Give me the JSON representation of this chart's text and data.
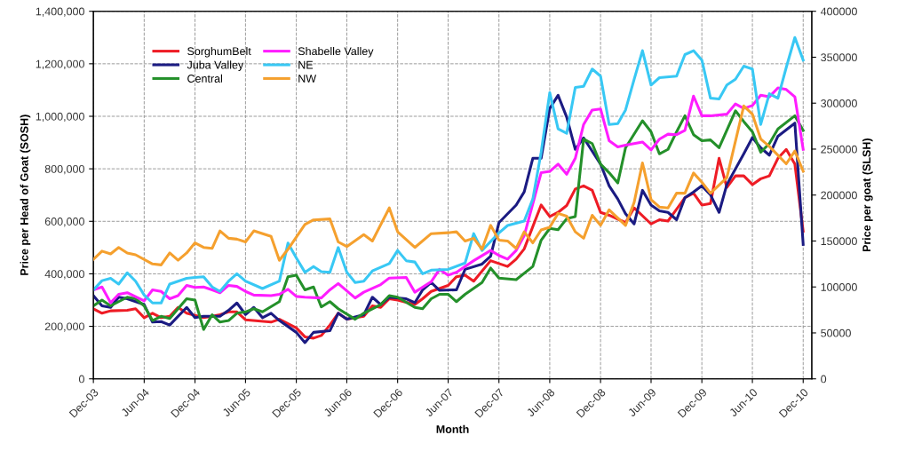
{
  "chart_data": {
    "type": "line",
    "xlabel": "Month",
    "ylabel": "Price per Head of Goat (SOSH)",
    "y2label": "Price per goat (SLSH)",
    "xlim": [
      "2003-12",
      "2011-01"
    ],
    "xticks": [
      {
        "value": "2003-12",
        "label": "Dec-03"
      },
      {
        "value": "2004-06",
        "label": "Jun-04"
      },
      {
        "value": "2004-12",
        "label": "Dec-04"
      },
      {
        "value": "2005-06",
        "label": "Jun-05"
      },
      {
        "value": "2005-12",
        "label": "Dec-05"
      },
      {
        "value": "2006-06",
        "label": "Jun-06"
      },
      {
        "value": "2006-12",
        "label": "Dec-06"
      },
      {
        "value": "2007-06",
        "label": "Jun-07"
      },
      {
        "value": "2007-12",
        "label": "Dec-07"
      },
      {
        "value": "2008-06",
        "label": "Jun-08"
      },
      {
        "value": "2008-12",
        "label": "Dec-08"
      },
      {
        "value": "2009-06",
        "label": "Jun-09"
      },
      {
        "value": "2009-12",
        "label": "Dec-09"
      },
      {
        "value": "2010-06",
        "label": "Jun-10"
      },
      {
        "value": "2010-12",
        "label": "Dec-10"
      }
    ],
    "ylim": [
      0,
      1400000
    ],
    "yticks": [
      {
        "value": 0,
        "label": "0"
      },
      {
        "value": 200000,
        "label": "200,000"
      },
      {
        "value": 400000,
        "label": "400,000"
      },
      {
        "value": 600000,
        "label": "600,000"
      },
      {
        "value": 800000,
        "label": "800,000"
      },
      {
        "value": 1000000,
        "label": "1,000,000"
      },
      {
        "value": 1200000,
        "label": "1,200,000"
      },
      {
        "value": 1400000,
        "label": "1,400,000"
      }
    ],
    "y2lim": [
      0,
      400000
    ],
    "y2ticks": [
      0,
      50000,
      100000,
      150000,
      200000,
      250000,
      300000,
      350000,
      400000
    ],
    "grid": true,
    "legend": "top left",
    "line_style": "solid",
    "marker": "none",
    "series": [
      {
        "name": "SorghumBelt",
        "color": "#ee1c25",
        "x": [
          "2003-12",
          "2004-01",
          "2004-02",
          "2004-04",
          "2004-05",
          "2004-06",
          "2004-07",
          "2004-08",
          "2004-09",
          "2004-10",
          "2004-11",
          "2005-01",
          "2005-02",
          "2005-03",
          "2005-04",
          "2005-05",
          "2005-06",
          "2005-09",
          "2005-10",
          "2005-12",
          "2006-01",
          "2006-02",
          "2006-03",
          "2006-04",
          "2006-05",
          "2006-06",
          "2006-08",
          "2006-09",
          "2006-10",
          "2006-11",
          "2006-12",
          "2007-02",
          "2007-03",
          "2007-04",
          "2007-06",
          "2007-07",
          "2007-08",
          "2007-09",
          "2007-11",
          "2007-12",
          "2008-01",
          "2008-02",
          "2008-03",
          "2008-05",
          "2008-06",
          "2008-07",
          "2008-08",
          "2008-09",
          "2008-10",
          "2008-11",
          "2008-12",
          "2009-01",
          "2009-03",
          "2009-04",
          "2009-06",
          "2009-07",
          "2009-08",
          "2009-10",
          "2009-11",
          "2009-12",
          "2010-01",
          "2010-02",
          "2010-03",
          "2010-04",
          "2010-05",
          "2010-06",
          "2010-07",
          "2010-08",
          "2010-09",
          "2010-10",
          "2010-11",
          "2010-12"
        ],
        "values": [
          267000,
          250000,
          259000,
          261000,
          267000,
          233000,
          250000,
          233000,
          238000,
          272000,
          250000,
          233000,
          238000,
          244000,
          255000,
          255000,
          225000,
          216000,
          227000,
          194000,
          160000,
          155000,
          165000,
          205000,
          250000,
          227000,
          238000,
          278000,
          272000,
          305000,
          300000,
          283000,
          305000,
          333000,
          356000,
          389000,
          395000,
          372000,
          450000,
          439000,
          428000,
          456000,
          495000,
          662000,
          618000,
          634000,
          660000,
          723000,
          735000,
          718000,
          634000,
          623000,
          595000,
          651000,
          590000,
          606000,
          601000,
          690000,
          707000,
          662000,
          668000,
          840000,
          729000,
          773000,
          773000,
          740000,
          762000,
          773000,
          840000,
          874000,
          818000,
          562000
        ]
      },
      {
        "name": "Juba Valley",
        "color": "#1b1b82",
        "x": [
          "2003-12",
          "2004-01",
          "2004-02",
          "2004-03",
          "2004-04",
          "2004-06",
          "2004-07",
          "2004-08",
          "2004-09",
          "2004-11",
          "2004-12",
          "2005-01",
          "2005-03",
          "2005-04",
          "2005-05",
          "2005-06",
          "2005-07",
          "2005-08",
          "2005-09",
          "2005-10",
          "2005-12",
          "2006-01",
          "2006-02",
          "2006-04",
          "2006-05",
          "2006-06",
          "2006-08",
          "2006-09",
          "2006-10",
          "2006-11",
          "2007-01",
          "2007-02",
          "2007-03",
          "2007-04",
          "2007-05",
          "2007-07",
          "2007-08",
          "2007-10",
          "2007-11",
          "2007-12",
          "2008-02",
          "2008-03",
          "2008-04",
          "2008-05",
          "2008-06",
          "2008-07",
          "2008-08",
          "2008-09",
          "2008-10",
          "2008-12",
          "2009-01",
          "2009-02",
          "2009-03",
          "2009-04",
          "2009-05",
          "2009-06",
          "2009-07",
          "2009-08",
          "2009-09",
          "2009-10",
          "2009-11",
          "2009-12",
          "2010-01",
          "2010-02",
          "2010-03",
          "2010-05",
          "2010-06",
          "2010-07",
          "2010-08",
          "2010-09",
          "2010-11",
          "2010-12"
        ],
        "values": [
          317000,
          278000,
          272000,
          311000,
          305000,
          283000,
          216000,
          218000,
          205000,
          272000,
          233000,
          238000,
          238000,
          261000,
          289000,
          245000,
          272000,
          233000,
          250000,
          222000,
          177000,
          138000,
          177000,
          183000,
          250000,
          227000,
          244000,
          311000,
          283000,
          311000,
          305000,
          290000,
          339000,
          367000,
          337000,
          339000,
          417000,
          437000,
          467000,
          595000,
          662000,
          712000,
          840000,
          840000,
          1030000,
          1080000,
          997000,
          874000,
          918000,
          818000,
          735000,
          685000,
          629000,
          590000,
          718000,
          662000,
          640000,
          634000,
          606000,
          690000,
          712000,
          735000,
          701000,
          634000,
          740000,
          857000,
          919000,
          880000,
          852000,
          924000,
          974000,
          512000
        ]
      },
      {
        "name": "Central",
        "color": "#24902a",
        "x": [
          "2003-12",
          "2004-01",
          "2004-02",
          "2004-04",
          "2004-05",
          "2004-06",
          "2004-07",
          "2004-08",
          "2004-09",
          "2004-10",
          "2004-11",
          "2004-12",
          "2005-01",
          "2005-02",
          "2005-03",
          "2005-04",
          "2005-05",
          "2005-06",
          "2005-07",
          "2005-08",
          "2005-10",
          "2005-11",
          "2005-12",
          "2006-01",
          "2006-02",
          "2006-03",
          "2006-04",
          "2006-05",
          "2006-07",
          "2006-08",
          "2006-10",
          "2006-11",
          "2006-12",
          "2007-02",
          "2007-03",
          "2007-04",
          "2007-05",
          "2007-06",
          "2007-07",
          "2007-08",
          "2007-10",
          "2007-11",
          "2007-12",
          "2008-02",
          "2008-04",
          "2008-05",
          "2008-06",
          "2008-07",
          "2008-08",
          "2008-09",
          "2008-10",
          "2008-11",
          "2008-12",
          "2009-01",
          "2009-02",
          "2009-03",
          "2009-05",
          "2009-06",
          "2009-07",
          "2009-08",
          "2009-09",
          "2009-10",
          "2009-11",
          "2009-12",
          "2010-01",
          "2010-02",
          "2010-04",
          "2010-05",
          "2010-06",
          "2010-07",
          "2010-08",
          "2010-09",
          "2010-11",
          "2010-12"
        ],
        "values": [
          278000,
          300000,
          278000,
          311000,
          305000,
          278000,
          222000,
          238000,
          230000,
          267000,
          305000,
          300000,
          188000,
          244000,
          216000,
          222000,
          250000,
          255000,
          267000,
          255000,
          294000,
          389000,
          395000,
          339000,
          350000,
          274000,
          294000,
          267000,
          227000,
          250000,
          283000,
          317000,
          311000,
          272000,
          267000,
          305000,
          322000,
          322000,
          294000,
          322000,
          367000,
          422000,
          384000,
          378000,
          428000,
          528000,
          573000,
          568000,
          610000,
          618000,
          913000,
          896000,
          818000,
          785000,
          746000,
          880000,
          983000,
          941000,
          857000,
          874000,
          941000,
          1002000,
          930000,
          907000,
          910000,
          880000,
          1021000,
          980000,
          941000,
          863000,
          896000,
          952000,
          1002000,
          946000
        ]
      },
      {
        "name": "Shabelle Valley",
        "color": "#ff1dff",
        "x": [
          "2003-12",
          "2004-01",
          "2004-02",
          "2004-03",
          "2004-04",
          "2004-06",
          "2004-07",
          "2004-08",
          "2004-09",
          "2004-10",
          "2004-11",
          "2004-12",
          "2005-01",
          "2005-02",
          "2005-03",
          "2005-04",
          "2005-05",
          "2005-06",
          "2005-07",
          "2005-09",
          "2005-10",
          "2005-11",
          "2005-12",
          "2006-01",
          "2006-03",
          "2006-04",
          "2006-05",
          "2006-07",
          "2006-08",
          "2006-10",
          "2006-11",
          "2007-01",
          "2007-02",
          "2007-04",
          "2007-05",
          "2007-06",
          "2007-07",
          "2007-09",
          "2007-11",
          "2007-12",
          "2008-01",
          "2008-02",
          "2008-03",
          "2008-05",
          "2008-06",
          "2008-07",
          "2008-08",
          "2008-09",
          "2008-10",
          "2008-11",
          "2008-12",
          "2009-01",
          "2009-02",
          "2009-03",
          "2009-05",
          "2009-06",
          "2009-07",
          "2009-08",
          "2009-09",
          "2009-10",
          "2009-11",
          "2009-12",
          "2010-01",
          "2010-03",
          "2010-04",
          "2010-05",
          "2010-06",
          "2010-07",
          "2010-08",
          "2010-09",
          "2010-10",
          "2010-11",
          "2010-12"
        ],
        "values": [
          339000,
          350000,
          290000,
          322000,
          328000,
          297000,
          339000,
          333000,
          305000,
          317000,
          356000,
          348000,
          350000,
          339000,
          328000,
          356000,
          352000,
          333000,
          319000,
          317000,
          322000,
          341000,
          314000,
          311000,
          308000,
          339000,
          363000,
          308000,
          330000,
          359000,
          384000,
          386000,
          330000,
          370000,
          417000,
          395000,
          406000,
          450000,
          489000,
          470000,
          456000,
          489000,
          545000,
          785000,
          790000,
          818000,
          779000,
          840000,
          969000,
          1024000,
          1028000,
          907000,
          883000,
          890000,
          902000,
          872000,
          913000,
          932000,
          930000,
          946000,
          1077000,
          1002000,
          1002000,
          1008000,
          1047000,
          1030000,
          1041000,
          1080000,
          1074000,
          1108000,
          1102000,
          1074000,
          874000
        ]
      },
      {
        "name": "NE",
        "color": "#38c8f4",
        "x": [
          "2003-12",
          "2004-01",
          "2004-02",
          "2004-03",
          "2004-04",
          "2004-05",
          "2004-06",
          "2004-07",
          "2004-08",
          "2004-09",
          "2004-11",
          "2004-12",
          "2005-01",
          "2005-02",
          "2005-03",
          "2005-04",
          "2005-05",
          "2005-06",
          "2005-08",
          "2005-10",
          "2005-11",
          "2005-12",
          "2006-01",
          "2006-02",
          "2006-03",
          "2006-04",
          "2006-05",
          "2006-06",
          "2006-07",
          "2006-08",
          "2006-09",
          "2006-11",
          "2006-12",
          "2007-01",
          "2007-02",
          "2007-03",
          "2007-04",
          "2007-06",
          "2007-08",
          "2007-09",
          "2007-10",
          "2007-12",
          "2008-01",
          "2008-03",
          "2008-04",
          "2008-05",
          "2008-06",
          "2008-07",
          "2008-08",
          "2008-09",
          "2008-10",
          "2008-11",
          "2008-12",
          "2009-01",
          "2009-02",
          "2009-03",
          "2009-04",
          "2009-05",
          "2009-06",
          "2009-07",
          "2009-09",
          "2009-10",
          "2009-11",
          "2009-12",
          "2010-01",
          "2010-02",
          "2010-03",
          "2010-04",
          "2010-05",
          "2010-06",
          "2010-07",
          "2010-08",
          "2010-09",
          "2010-10",
          "2010-11",
          "2010-12"
        ],
        "values": [
          339000,
          374000,
          383000,
          361000,
          404000,
          372000,
          319000,
          289000,
          289000,
          361000,
          383000,
          386000,
          389000,
          350000,
          333000,
          372000,
          400000,
          372000,
          344000,
          372000,
          517000,
          461000,
          406000,
          428000,
          408000,
          406000,
          500000,
          406000,
          367000,
          372000,
          411000,
          439000,
          489000,
          450000,
          445000,
          400000,
          414000,
          417000,
          441000,
          553000,
          489000,
          556000,
          584000,
          601000,
          685000,
          863000,
          1090000,
          952000,
          935000,
          1110000,
          1114000,
          1180000,
          1153000,
          969000,
          972000,
          1024000,
          1141000,
          1250000,
          1119000,
          1147000,
          1153000,
          1235000,
          1250000,
          1214000,
          1069000,
          1066000,
          1119000,
          1141000,
          1191000,
          1180000,
          969000,
          1086000,
          1069000,
          1186000,
          1300000,
          1214000
        ]
      },
      {
        "name": "NW",
        "color": "#f5a02e",
        "axis": "y2",
        "x": [
          "2003-12",
          "2004-01",
          "2004-02",
          "2004-03",
          "2004-04",
          "2004-05",
          "2004-07",
          "2004-08",
          "2004-09",
          "2004-10",
          "2004-11",
          "2004-12",
          "2005-01",
          "2005-02",
          "2005-03",
          "2005-04",
          "2005-05",
          "2005-06",
          "2005-07",
          "2005-09",
          "2005-10",
          "2005-11",
          "2006-01",
          "2006-02",
          "2006-04",
          "2006-05",
          "2006-06",
          "2006-08",
          "2006-09",
          "2006-11",
          "2006-12",
          "2007-02",
          "2007-04",
          "2007-06",
          "2007-07",
          "2007-08",
          "2007-09",
          "2007-10",
          "2007-11",
          "2007-12",
          "2008-01",
          "2008-02",
          "2008-03",
          "2008-04",
          "2008-05",
          "2008-06",
          "2008-07",
          "2008-08",
          "2008-09",
          "2008-10",
          "2008-11",
          "2008-12",
          "2009-01",
          "2009-03",
          "2009-04",
          "2009-05",
          "2009-06",
          "2009-07",
          "2009-08",
          "2009-09",
          "2009-10",
          "2009-11",
          "2009-12",
          "2010-01",
          "2010-03",
          "2010-05",
          "2010-06",
          "2010-07",
          "2010-08",
          "2010-10",
          "2010-11",
          "2010-12"
        ],
        "values": [
          130000,
          139000,
          136000,
          143000,
          137000,
          135000,
          125000,
          124000,
          137000,
          129000,
          137000,
          148000,
          143000,
          142000,
          161000,
          153000,
          152000,
          149000,
          161000,
          155000,
          129000,
          141000,
          168000,
          173000,
          174000,
          149000,
          144000,
          157000,
          150000,
          186000,
          160000,
          143000,
          158000,
          159000,
          160000,
          150000,
          153000,
          141000,
          167000,
          151000,
          150000,
          142000,
          160000,
          148000,
          162000,
          165000,
          180000,
          177000,
          160000,
          153000,
          178000,
          167000,
          184000,
          167000,
          192000,
          235000,
          195000,
          187000,
          186000,
          202000,
          202000,
          224000,
          214000,
          202000,
          219000,
          297000,
          288000,
          261000,
          253000,
          234000,
          248000,
          226000
        ]
      }
    ]
  }
}
